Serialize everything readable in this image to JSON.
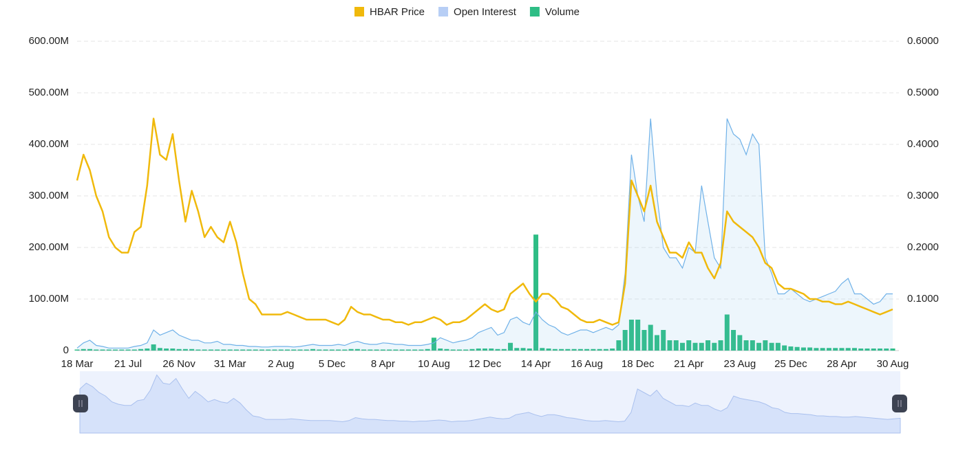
{
  "chart_data": {
    "type": "line",
    "categories": [
      "18 Mar",
      null,
      null,
      null,
      null,
      null,
      null,
      null,
      "21 Jul",
      null,
      null,
      null,
      null,
      null,
      null,
      null,
      "26 Nov",
      null,
      null,
      null,
      null,
      null,
      null,
      null,
      "31 Mar",
      null,
      null,
      null,
      null,
      null,
      null,
      null,
      "2 Aug",
      null,
      null,
      null,
      null,
      null,
      null,
      null,
      "5 Dec",
      null,
      null,
      null,
      null,
      null,
      null,
      null,
      "8 Apr",
      null,
      null,
      null,
      null,
      null,
      null,
      null,
      "10 Aug",
      null,
      null,
      null,
      null,
      null,
      null,
      null,
      "12 Dec",
      null,
      null,
      null,
      null,
      null,
      null,
      null,
      "14 Apr",
      null,
      null,
      null,
      null,
      null,
      null,
      null,
      "16 Aug",
      null,
      null,
      null,
      null,
      null,
      null,
      null,
      "18 Dec",
      null,
      null,
      null,
      null,
      null,
      null,
      null,
      "21 Apr",
      null,
      null,
      null,
      null,
      null,
      null,
      null,
      "23 Aug",
      null,
      null,
      null,
      null,
      null,
      null,
      null,
      "25 Dec",
      null,
      null,
      null,
      null,
      null,
      null,
      null,
      "28 Apr",
      null,
      null,
      null,
      null,
      null,
      null,
      null,
      "30 Aug"
    ],
    "series": [
      {
        "name": "HBAR Price",
        "color": "#f0b90b",
        "axis": "y2",
        "values": [
          0.33,
          0.38,
          0.35,
          0.3,
          0.27,
          0.22,
          0.2,
          0.19,
          0.19,
          0.23,
          0.24,
          0.32,
          0.45,
          0.38,
          0.37,
          0.42,
          0.33,
          0.25,
          0.31,
          0.27,
          0.22,
          0.24,
          0.22,
          0.21,
          0.25,
          0.21,
          0.15,
          0.1,
          0.09,
          0.07,
          0.07,
          0.07,
          0.07,
          0.075,
          0.07,
          0.065,
          0.06,
          0.06,
          0.06,
          0.06,
          0.055,
          0.05,
          0.06,
          0.085,
          0.075,
          0.07,
          0.07,
          0.065,
          0.06,
          0.06,
          0.055,
          0.055,
          0.05,
          0.055,
          0.055,
          0.06,
          0.065,
          0.06,
          0.05,
          0.055,
          0.055,
          0.06,
          0.07,
          0.08,
          0.09,
          0.08,
          0.075,
          0.08,
          0.11,
          0.12,
          0.13,
          0.11,
          0.095,
          0.11,
          0.11,
          0.1,
          0.085,
          0.08,
          0.07,
          0.06,
          0.055,
          0.055,
          0.06,
          0.055,
          0.05,
          0.055,
          0.13,
          0.33,
          0.3,
          0.27,
          0.32,
          0.25,
          0.22,
          0.19,
          0.19,
          0.18,
          0.21,
          0.19,
          0.19,
          0.16,
          0.14,
          0.17,
          0.27,
          0.25,
          0.24,
          0.23,
          0.22,
          0.2,
          0.17,
          0.16,
          0.13,
          0.12,
          0.12,
          0.115,
          0.11,
          0.1,
          0.1,
          0.095,
          0.095,
          0.09,
          0.09,
          0.095,
          0.09,
          0.085,
          0.08,
          0.075,
          0.07,
          0.075,
          0.08
        ]
      },
      {
        "name": "Open Interest",
        "color": "#6fb1e8",
        "values": [
          5000000.0,
          15000000.0,
          20000000.0,
          10000000.0,
          8000000.0,
          5000000.0,
          5000000.0,
          5000000.0,
          5000000.0,
          8000000.0,
          10000000.0,
          15000000.0,
          40000000.0,
          30000000.0,
          35000000.0,
          40000000.0,
          30000000.0,
          25000000.0,
          20000000.0,
          20000000.0,
          15000000.0,
          15000000.0,
          18000000.0,
          12000000.0,
          12000000.0,
          10000000.0,
          10000000.0,
          8000000.0,
          8000000.0,
          7000000.0,
          7000000.0,
          8000000.0,
          8000000.0,
          8000000.0,
          7000000.0,
          8000000.0,
          10000000.0,
          12000000.0,
          10000000.0,
          10000000.0,
          10000000.0,
          12000000.0,
          10000000.0,
          15000000.0,
          18000000.0,
          14000000.0,
          12000000.0,
          12000000.0,
          15000000.0,
          14000000.0,
          12000000.0,
          12000000.0,
          10000000.0,
          10000000.0,
          10000000.0,
          12000000.0,
          15000000.0,
          25000000.0,
          20000000.0,
          15000000.0,
          18000000.0,
          20000000.0,
          25000000.0,
          35000000.0,
          40000000.0,
          45000000.0,
          30000000.0,
          35000000.0,
          60000000.0,
          65000000.0,
          55000000.0,
          50000000.0,
          75000000.0,
          60000000.0,
          50000000.0,
          45000000.0,
          35000000.0,
          30000000.0,
          35000000.0,
          40000000.0,
          40000000.0,
          35000000.0,
          40000000.0,
          45000000.0,
          40000000.0,
          50000000.0,
          150000000.0,
          380000000.0,
          300000000.0,
          250000000.0,
          450000000.0,
          300000000.0,
          200000000.0,
          180000000.0,
          180000000.0,
          160000000.0,
          200000000.0,
          190000000.0,
          320000000.0,
          250000000.0,
          180000000.0,
          160000000.0,
          450000000.0,
          420000000.0,
          410000000.0,
          380000000.0,
          420000000.0,
          400000000.0,
          180000000.0,
          150000000.0,
          110000000.0,
          110000000.0,
          120000000.0,
          110000000.0,
          100000000.0,
          95000000.0,
          100000000.0,
          105000000.0,
          110000000.0,
          115000000.0,
          130000000.0,
          140000000.0,
          110000000.0,
          110000000.0,
          100000000.0,
          90000000.0,
          95000000.0,
          110000000.0,
          110000000.0
        ]
      },
      {
        "name": "Volume",
        "color": "#2ebd85",
        "values": [
          2000000.0,
          3000000.0,
          3000000.0,
          2000000.0,
          2000000.0,
          2000000.0,
          2000000.0,
          2000000.0,
          2000000.0,
          2000000.0,
          3000000.0,
          4000000.0,
          12000000.0,
          5000000.0,
          4000000.0,
          4000000.0,
          3000000.0,
          3000000.0,
          3000000.0,
          2000000.0,
          2000000.0,
          2000000.0,
          2000000.0,
          2000000.0,
          2000000.0,
          2000000.0,
          2000000.0,
          2000000.0,
          2000000.0,
          2000000.0,
          2000000.0,
          2000000.0,
          2000000.0,
          2000000.0,
          2000000.0,
          2000000.0,
          2000000.0,
          3000000.0,
          2000000.0,
          2000000.0,
          2000000.0,
          2000000.0,
          2000000.0,
          3000000.0,
          3000000.0,
          2000000.0,
          2000000.0,
          2000000.0,
          2000000.0,
          2000000.0,
          2000000.0,
          2000000.0,
          2000000.0,
          2000000.0,
          2000000.0,
          3000000.0,
          25000000.0,
          4000000.0,
          3000000.0,
          2000000.0,
          2000000.0,
          2000000.0,
          3000000.0,
          4000000.0,
          4000000.0,
          4000000.0,
          3000000.0,
          3000000.0,
          15000000.0,
          5000000.0,
          5000000.0,
          4000000.0,
          225000000.0,
          5000000.0,
          4000000.0,
          3000000.0,
          3000000.0,
          3000000.0,
          3000000.0,
          3000000.0,
          3000000.0,
          3000000.0,
          3000000.0,
          3000000.0,
          4000000.0,
          20000000.0,
          40000000.0,
          60000000.0,
          60000000.0,
          40000000.0,
          50000000.0,
          30000000.0,
          40000000.0,
          20000000.0,
          20000000.0,
          15000000.0,
          20000000.0,
          15000000.0,
          15000000.0,
          20000000.0,
          15000000.0,
          20000000.0,
          70000000.0,
          40000000.0,
          30000000.0,
          20000000.0,
          20000000.0,
          15000000.0,
          20000000.0,
          15000000.0,
          15000000.0,
          10000000.0,
          8000000.0,
          7000000.0,
          6000000.0,
          6000000.0,
          5000000.0,
          5000000.0,
          5000000.0,
          5000000.0,
          5000000.0,
          5000000.0,
          5000000.0,
          4000000.0,
          4000000.0,
          4000000.0,
          4000000.0,
          4000000.0,
          4000000.0
        ]
      }
    ],
    "ylim": [
      0,
      600000000
    ],
    "yticks": [
      0,
      {
        "value": 100000000,
        "label": "100.00M"
      },
      {
        "value": 200000000,
        "label": "200.00M"
      },
      {
        "value": 300000000,
        "label": "300.00M"
      },
      {
        "value": 400000000,
        "label": "400.00M"
      },
      {
        "value": 500000000,
        "label": "500.00M"
      },
      {
        "value": 600000000,
        "label": "600.00M"
      }
    ],
    "y2lim": [
      0,
      0.6
    ],
    "y2ticks": [
      {
        "value": 0.1,
        "label": "0.1000"
      },
      {
        "value": 0.2,
        "label": "0.2000"
      },
      {
        "value": 0.3,
        "label": "0.3000"
      },
      {
        "value": 0.4,
        "label": "0.4000"
      },
      {
        "value": 0.5,
        "label": "0.5000"
      },
      {
        "value": 0.6,
        "label": "0.6000"
      }
    ],
    "grid": true,
    "legend": "top"
  }
}
